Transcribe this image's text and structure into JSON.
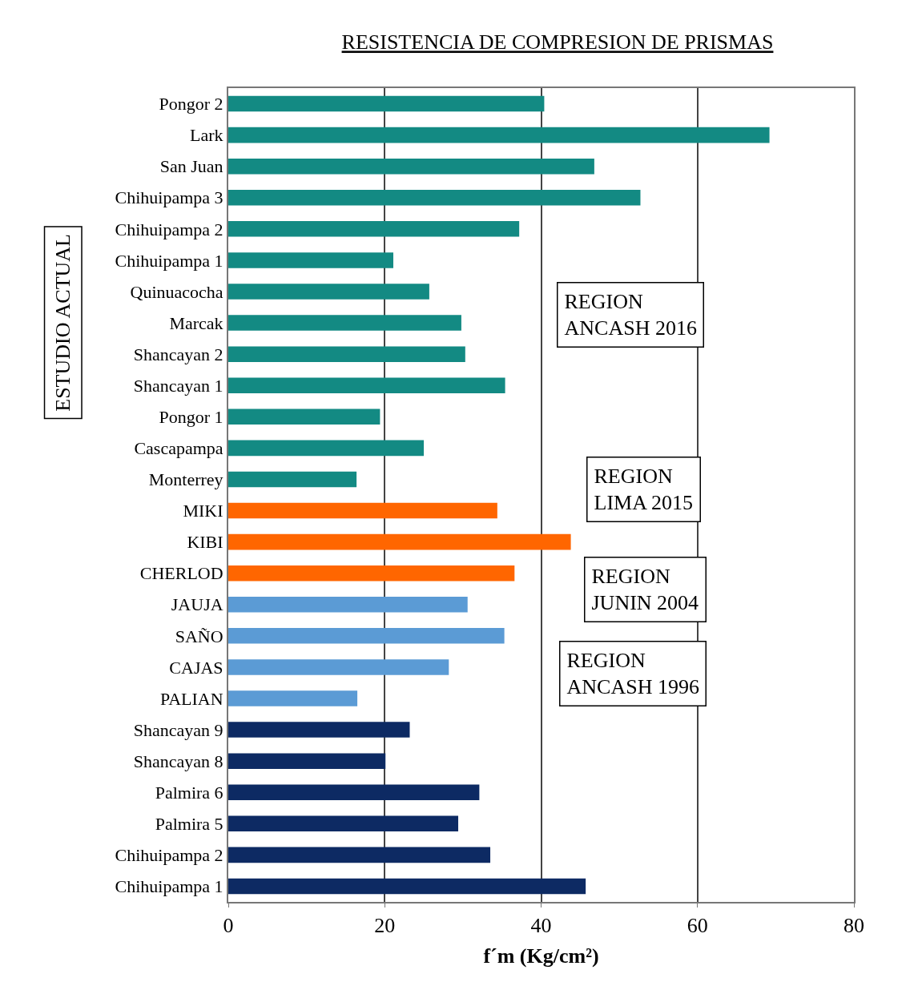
{
  "chart_data": {
    "type": "bar",
    "orientation": "horizontal",
    "title": "RESISTENCIA DE COMPRESION DE PRISMAS",
    "xlabel": "f´m (Kg/cm²)",
    "ylabel": "ESTUDIO ACTUAL",
    "categories": [
      "Pongor 2",
      "Lark",
      "San Juan",
      "Chihuipampa 3",
      "Chihuipampa 2",
      "Chihuipampa 1",
      "Quinuacocha",
      "Marcak",
      "Shancayan 2",
      "Shancayan 1",
      "Pongor 1",
      "Cascapampa",
      "Monterrey",
      "MIKI",
      "KIBI",
      "CHERLOD",
      "JAUJA",
      "SAÑO",
      "CAJAS",
      "PALIAN",
      "Shancayan 9",
      "Shancayan 8",
      "Palmira 6",
      "Palmira 5",
      "Chihuipampa 2",
      "Chihuipampa 1"
    ],
    "values": [
      40.4,
      69.2,
      46.8,
      52.7,
      37.2,
      21.1,
      25.7,
      29.8,
      30.3,
      35.4,
      19.4,
      25.0,
      16.4,
      34.4,
      43.8,
      36.6,
      30.6,
      35.3,
      28.2,
      16.5,
      23.2,
      20.1,
      32.1,
      29.4,
      33.5,
      45.7
    ],
    "colors": [
      "#138a83",
      "#138a83",
      "#138a83",
      "#138a83",
      "#138a83",
      "#138a83",
      "#138a83",
      "#138a83",
      "#138a83",
      "#138a83",
      "#138a83",
      "#138a83",
      "#138a83",
      "#ff6600",
      "#ff6600",
      "#ff6600",
      "#5b9bd5",
      "#5b9bd5",
      "#5b9bd5",
      "#5b9bd5",
      "#0d2a63",
      "#0d2a63",
      "#0d2a63",
      "#0d2a63",
      "#0d2a63",
      "#0d2a63"
    ],
    "xlim": [
      0,
      80
    ],
    "xticks": [
      0,
      20,
      40,
      60,
      80
    ],
    "grid": "x",
    "annotations": [
      "REGION\nANCASH 2016",
      "REGION\nLIMA 2015",
      "REGION\nJUNIN 2004",
      "REGION\nANCASH 1996"
    ]
  }
}
